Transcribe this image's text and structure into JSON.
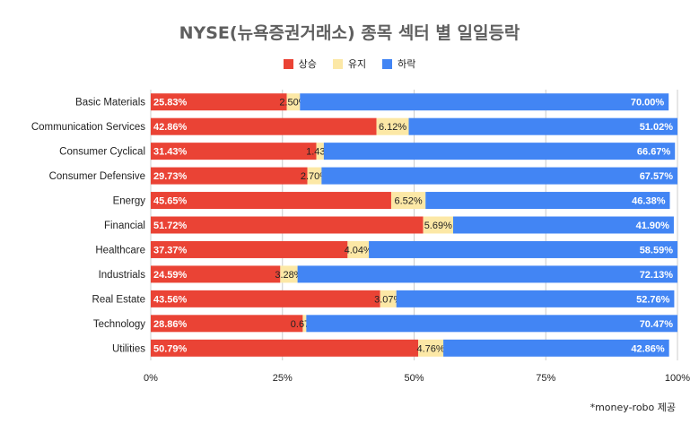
{
  "chart_data": {
    "type": "bar",
    "orientation": "horizontal",
    "stacked": "percent",
    "title": "NYSE(뉴욕증권거래소) 종목 섹터 별 일일등락",
    "categories": [
      "Basic Materials",
      "Communication Services",
      "Consumer Cyclical",
      "Consumer Defensive",
      "Energy",
      "Financial",
      "Healthcare",
      "Industrials",
      "Real Estate",
      "Technology",
      "Utilities"
    ],
    "series": [
      {
        "name": "상승",
        "color": "#ea4335",
        "values": [
          25.83,
          42.86,
          31.43,
          29.73,
          45.65,
          51.72,
          37.37,
          24.59,
          43.56,
          28.86,
          50.79
        ]
      },
      {
        "name": "유지",
        "color": "#fce8a6",
        "values": [
          2.5,
          6.12,
          1.43,
          2.7,
          6.52,
          5.69,
          4.04,
          3.28,
          3.07,
          0.67,
          4.76
        ]
      },
      {
        "name": "하락",
        "color": "#4285f4",
        "values": [
          70.0,
          51.02,
          66.67,
          67.57,
          46.38,
          41.9,
          58.59,
          72.13,
          52.76,
          70.47,
          42.86
        ]
      }
    ],
    "xlim": [
      0,
      100
    ],
    "xticks": [
      "0%",
      "25%",
      "50%",
      "75%",
      "100%"
    ],
    "legend_position": "top",
    "grid": true
  },
  "footnote": "*money-robo 제공"
}
